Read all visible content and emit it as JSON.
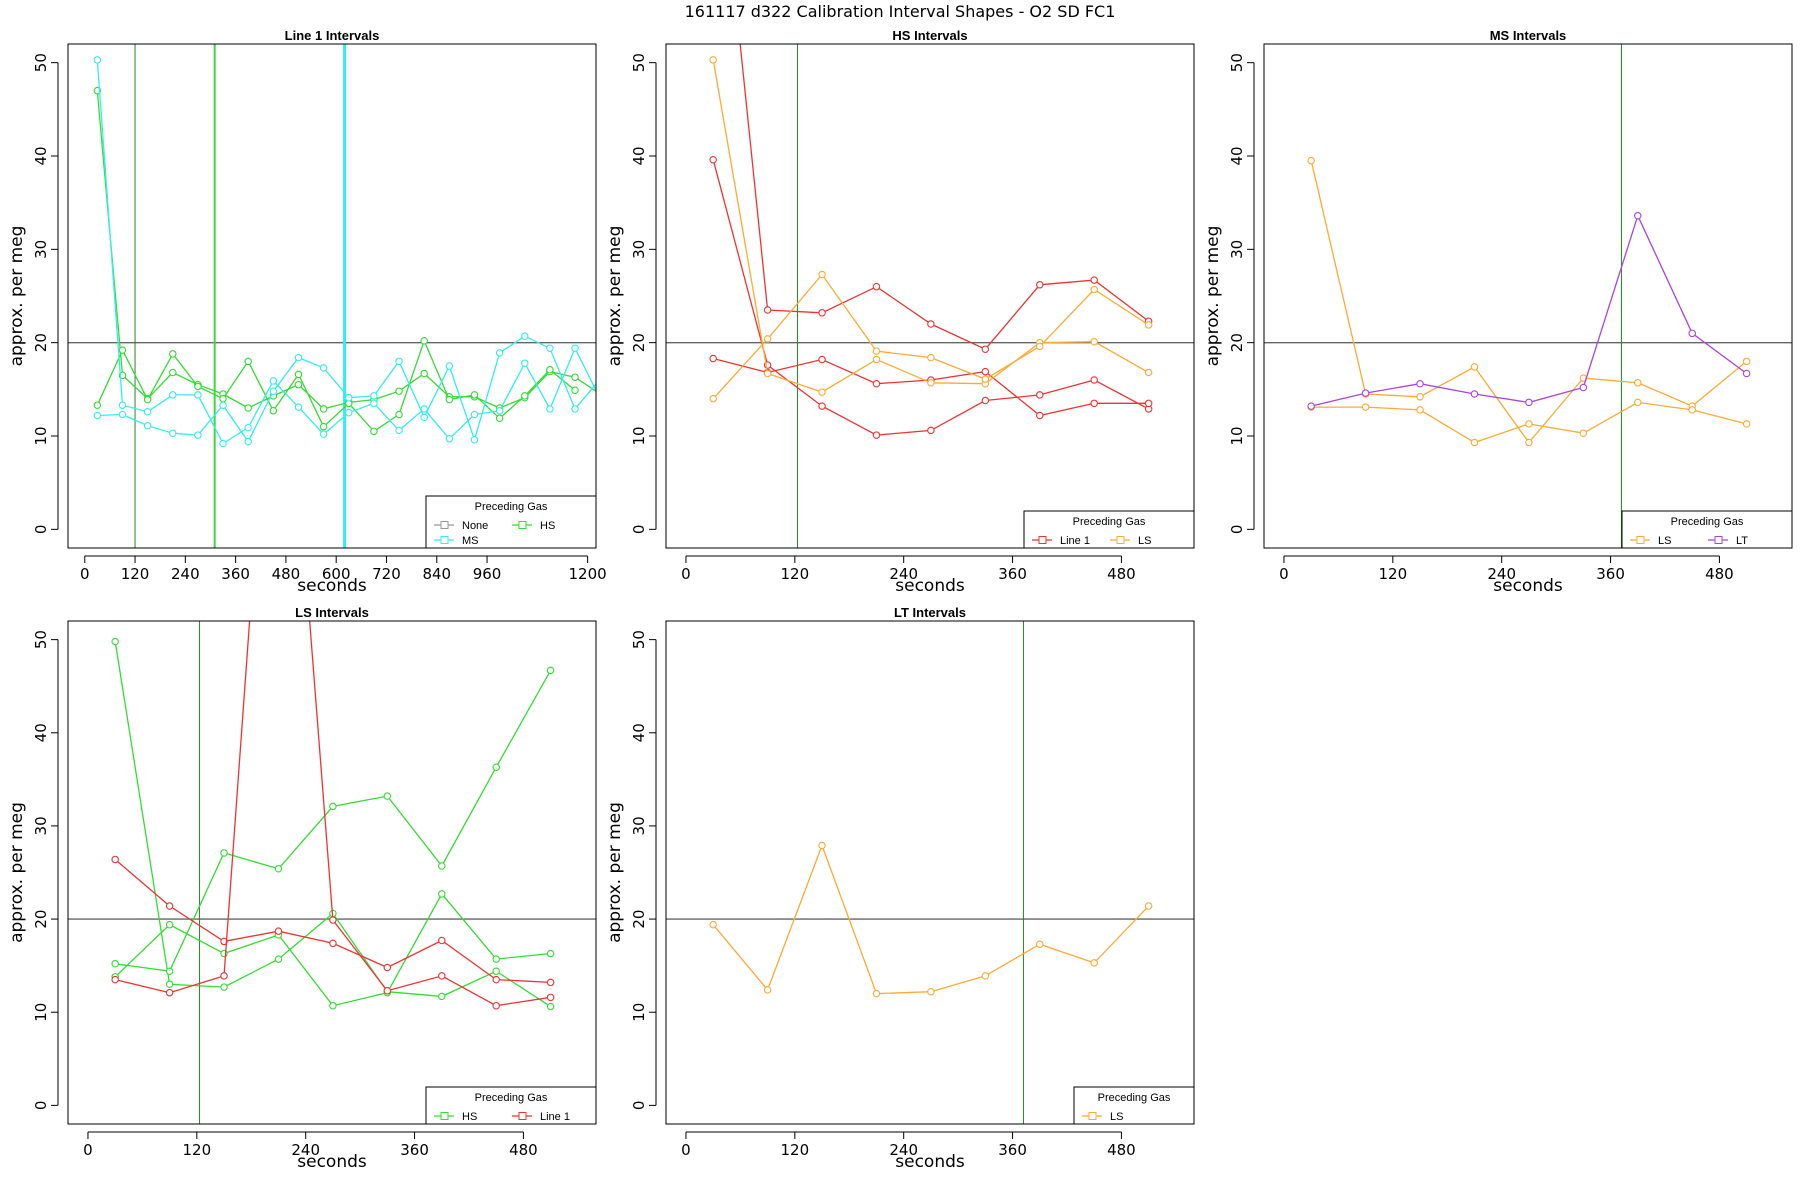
{
  "figure_title": "161117   d322   Calibration Interval Shapes - O2 SD FC1",
  "colors": {
    "None": "#999999",
    "HS": "#33dd33",
    "MS": "#33eeee",
    "Line 1": "#ee3333",
    "LS": "#ffaa33",
    "LT": "#aa44dd",
    "ref_line": "#666666",
    "vline_dark": "#228822"
  },
  "chart_data": [
    {
      "type": "line",
      "title": "Line 1 Intervals",
      "xlabel": "seconds",
      "ylabel": "approx. per meg",
      "xlim": [
        -40,
        1220
      ],
      "ylim": [
        -2,
        52
      ],
      "xticks": [
        0,
        120,
        240,
        360,
        480,
        600,
        720,
        840,
        960,
        1200
      ],
      "yticks": [
        0,
        10,
        20,
        30,
        40,
        50
      ],
      "hline": 20,
      "vlines": [
        {
          "x": 120,
          "color": "#228822",
          "width": 1
        },
        {
          "x": 310,
          "color": "#33dd33",
          "width": 2
        },
        {
          "x": 620,
          "color": "#33eeee",
          "width": 3
        }
      ],
      "legend": {
        "title": "Preceding Gas",
        "position": "bottom-right",
        "entries": [
          "None",
          "HS",
          "MS"
        ]
      },
      "series": [
        {
          "name": "HS",
          "x": [
            30,
            90,
            150,
            210,
            270,
            330,
            390,
            450,
            510,
            570,
            630,
            690,
            750,
            810,
            870,
            930,
            990,
            1050,
            1110,
            1170,
            1230
          ],
          "y": [
            47,
            16.5,
            14,
            16.8,
            15.5,
            14.5,
            13,
            14.3,
            15.5,
            12.9,
            13.6,
            13.9,
            14.8,
            16.7,
            14.2,
            14.2,
            13,
            14.1,
            16.9,
            16.3,
            14.5
          ]
        },
        {
          "name": "HS",
          "x": [
            30,
            90,
            150,
            210,
            270,
            330,
            390,
            450,
            510,
            570,
            630,
            690,
            750,
            810,
            870,
            930,
            990,
            1050,
            1110,
            1170
          ],
          "y": [
            13.3,
            19.2,
            13.9,
            18.8,
            15.3,
            14,
            18,
            12.7,
            16.6,
            11,
            13.5,
            10.5,
            12.3,
            20.2,
            13.9,
            14.4,
            11.9,
            14.3,
            17.1,
            14.9
          ]
        },
        {
          "name": "MS",
          "x": [
            30,
            90,
            150,
            210,
            270,
            330,
            390,
            450,
            510,
            570,
            630,
            690,
            750,
            810,
            870,
            930,
            990,
            1050,
            1110,
            1170,
            1230
          ],
          "y": [
            50.3,
            13.3,
            12.6,
            14.4,
            14.4,
            9.2,
            10.9,
            15.9,
            13.1,
            10.2,
            12.5,
            13.5,
            10.6,
            12.9,
            9.7,
            12.3,
            12.7,
            17.8,
            12.9,
            19.4,
            14
          ]
        },
        {
          "name": "MS",
          "x": [
            30,
            90,
            150,
            210,
            270,
            330,
            390,
            450,
            510,
            570,
            630,
            690,
            750,
            810,
            870,
            930,
            990,
            1050,
            1110,
            1170,
            1230
          ],
          "y": [
            12.2,
            12.3,
            11.1,
            10.3,
            10.1,
            13.3,
            9.4,
            14.8,
            18.4,
            17.3,
            14.1,
            14.3,
            18,
            12,
            17.5,
            9.6,
            18.9,
            20.7,
            19.4,
            12.9,
            16.1
          ]
        }
      ]
    },
    {
      "type": "line",
      "title": "HS Intervals",
      "xlabel": "seconds",
      "ylabel": "approx. per meg",
      "xlim": [
        -22,
        560
      ],
      "ylim": [
        -2,
        52
      ],
      "xticks": [
        0,
        120,
        240,
        360,
        480
      ],
      "yticks": [
        0,
        10,
        20,
        30,
        40,
        50
      ],
      "hline": 20,
      "vlines": [
        {
          "x": 123,
          "color": "#228822",
          "width": 1
        }
      ],
      "legend": {
        "title": "Preceding Gas",
        "position": "bottom-right",
        "entries": [
          "Line 1",
          "LS"
        ]
      },
      "series": [
        {
          "name": "Line 1",
          "x": [
            30,
            90,
            150,
            210,
            270,
            330,
            390,
            450,
            510
          ],
          "y": [
            39.6,
            17.6,
            13.2,
            10.1,
            10.6,
            13.8,
            14.4,
            16,
            12.9
          ]
        },
        {
          "name": "Line 1",
          "x": [
            30,
            90,
            150,
            210,
            270,
            330,
            390,
            450,
            510
          ],
          "y": [
            18.3,
            16.8,
            18.2,
            15.6,
            16,
            16.9,
            12.2,
            13.5,
            13.5
          ]
        },
        {
          "name": "Line 1",
          "x": [
            30,
            90,
            150,
            210,
            270,
            330,
            390,
            450,
            510
          ],
          "y": [
            80,
            23.5,
            23.2,
            26,
            22,
            19.3,
            26.2,
            26.7,
            22.3
          ]
        },
        {
          "name": "LS",
          "x": [
            30,
            90,
            150,
            210,
            270,
            330,
            390,
            450,
            510
          ],
          "y": [
            50.3,
            16.7,
            14.7,
            18.2,
            15.7,
            15.6,
            20,
            20.1,
            16.8
          ]
        },
        {
          "name": "LS",
          "x": [
            30,
            90,
            150,
            210,
            270,
            330,
            390,
            450,
            510
          ],
          "y": [
            14,
            20.4,
            27.3,
            19.1,
            18.4,
            16.1,
            19.6,
            25.7,
            21.9
          ]
        }
      ]
    },
    {
      "type": "line",
      "title": "MS Intervals",
      "xlabel": "seconds",
      "ylabel": "approx. per meg",
      "xlim": [
        -22,
        560
      ],
      "ylim": [
        -2,
        52
      ],
      "xticks": [
        0,
        120,
        240,
        360,
        480
      ],
      "yticks": [
        0,
        10,
        20,
        30,
        40,
        50
      ],
      "hline": 20,
      "vlines": [
        {
          "x": 372,
          "color": "#228822",
          "width": 1
        }
      ],
      "legend": {
        "title": "Preceding Gas",
        "position": "bottom-right",
        "entries": [
          "LS",
          "LT"
        ]
      },
      "series": [
        {
          "name": "LS",
          "x": [
            30,
            90,
            150,
            210,
            270,
            330,
            390,
            450,
            510
          ],
          "y": [
            39.5,
            14.5,
            14.2,
            17.4,
            9.3,
            16.2,
            15.7,
            13.2,
            18
          ]
        },
        {
          "name": "LS",
          "x": [
            30,
            90,
            150,
            210,
            270,
            330,
            390,
            450,
            510
          ],
          "y": [
            13.1,
            13.1,
            12.8,
            9.3,
            11.3,
            10.3,
            13.6,
            12.8,
            11.3
          ]
        },
        {
          "name": "LT",
          "x": [
            30,
            90,
            150,
            210,
            270,
            330,
            390,
            450,
            510
          ],
          "y": [
            13.2,
            14.6,
            15.6,
            14.5,
            13.6,
            15.2,
            33.6,
            21,
            16.7
          ]
        }
      ]
    },
    {
      "type": "line",
      "title": "LS Intervals",
      "xlabel": "seconds",
      "ylabel": "approx. per meg",
      "xlim": [
        -22,
        560
      ],
      "ylim": [
        -2,
        52
      ],
      "xticks": [
        0,
        120,
        240,
        360,
        480
      ],
      "yticks": [
        0,
        10,
        20,
        30,
        40,
        50
      ],
      "hline": 20,
      "vlines": [
        {
          "x": 123,
          "color": "#228822",
          "width": 1
        }
      ],
      "legend": {
        "title": "Preceding Gas",
        "position": "bottom-right",
        "entries": [
          "HS",
          "Line 1"
        ]
      },
      "series": [
        {
          "name": "HS",
          "x": [
            30,
            90,
            150,
            210,
            270,
            330,
            390,
            450,
            510
          ],
          "y": [
            49.8,
            13,
            12.7,
            15.7,
            20.6,
            12.2,
            11.7,
            14.4,
            10.6
          ]
        },
        {
          "name": "HS",
          "x": [
            30,
            90,
            150,
            210,
            270,
            330,
            390,
            450,
            510
          ],
          "y": [
            15.2,
            14.4,
            27.1,
            25.4,
            32.1,
            33.2,
            25.7,
            36.3,
            46.7
          ]
        },
        {
          "name": "HS",
          "x": [
            30,
            90,
            150,
            210,
            270,
            330,
            390,
            450,
            510
          ],
          "y": [
            13.8,
            19.4,
            16.3,
            18.3,
            10.7,
            12.1,
            22.7,
            15.7,
            16.3
          ]
        },
        {
          "name": "Line 1",
          "x": [
            30,
            90,
            150,
            210,
            270,
            330,
            390,
            450,
            510
          ],
          "y": [
            26.4,
            21.4,
            17.6,
            18.7,
            17.4,
            14.8,
            17.7,
            13.5,
            13.2
          ]
        },
        {
          "name": "Line 1",
          "x": [
            30,
            90,
            150,
            210,
            270,
            330,
            390,
            450,
            510
          ],
          "y": [
            13.5,
            12.1,
            13.9,
            95,
            19.9,
            12.3,
            13.9,
            10.7,
            11.6
          ]
        }
      ]
    },
    {
      "type": "line",
      "title": "LT Intervals",
      "xlabel": "seconds",
      "ylabel": "approx. per meg",
      "xlim": [
        -22,
        560
      ],
      "ylim": [
        -2,
        52
      ],
      "xticks": [
        0,
        120,
        240,
        360,
        480
      ],
      "yticks": [
        0,
        10,
        20,
        30,
        40,
        50
      ],
      "hline": 20,
      "vlines": [
        {
          "x": 372,
          "color": "#228822",
          "width": 1
        }
      ],
      "legend": {
        "title": "Preceding Gas",
        "position": "bottom-right",
        "entries": [
          "LS"
        ]
      },
      "series": [
        {
          "name": "LS",
          "x": [
            30,
            90,
            150,
            210,
            270,
            330,
            390,
            450,
            510
          ],
          "y": [
            19.4,
            12.4,
            27.9,
            12,
            12.2,
            13.9,
            17.3,
            15.3,
            21.4
          ]
        }
      ]
    }
  ]
}
